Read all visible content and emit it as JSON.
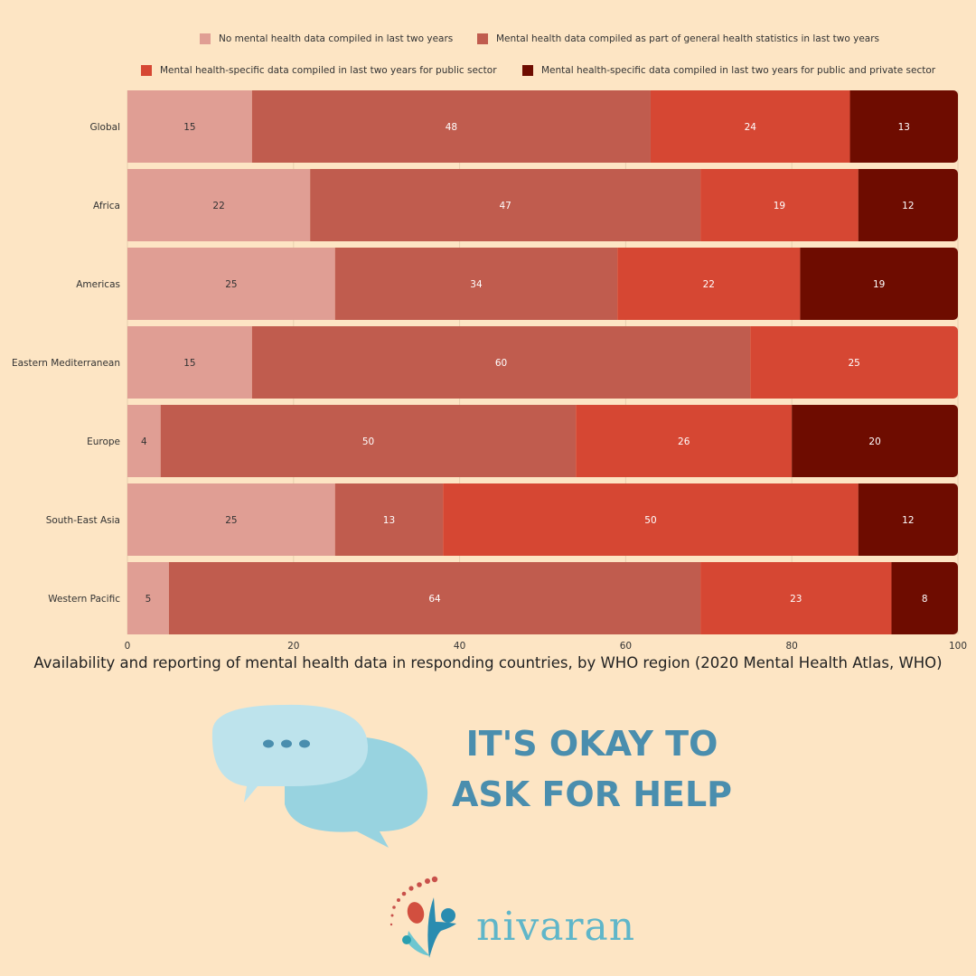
{
  "chart_data": {
    "type": "bar",
    "orientation": "horizontal",
    "stacked": true,
    "categories": [
      "Global",
      "Africa",
      "Americas",
      "Eastern Mediterranean",
      "Europe",
      "South-East Asia",
      "Western Pacific"
    ],
    "series": [
      {
        "name": "No mental health data compiled in last two years",
        "color": "#e09e94",
        "values": [
          15,
          22,
          25,
          15,
          4,
          25,
          5
        ]
      },
      {
        "name": "Mental health data compiled as part of general health statistics in last two years",
        "color": "#c05c4e",
        "values": [
          48,
          47,
          34,
          60,
          50,
          13,
          64
        ]
      },
      {
        "name": "Mental health-specific data compiled in last two years for public sector",
        "color": "#d64733",
        "values": [
          24,
          19,
          22,
          25,
          26,
          50,
          23
        ]
      },
      {
        "name": "Mental health-specific data compiled in last two years for public and private sector",
        "color": "#6e0c00",
        "values": [
          13,
          12,
          19,
          0,
          20,
          12,
          8
        ]
      }
    ],
    "xlim": [
      0,
      100
    ],
    "xticks": [
      0,
      20,
      40,
      60,
      80,
      100
    ],
    "grid": true,
    "legend_position": "top",
    "title": "Availability and reporting of mental health data in responding countries, by WHO region (2020 Mental Health Atlas, WHO)"
  },
  "slogan": {
    "line1": "IT'S OKAY TO",
    "line2": "ASK FOR HELP"
  },
  "logo": {
    "text": "nivaran"
  },
  "colors": {
    "background": "#fde5c4",
    "slogan": "#4a8eae"
  }
}
